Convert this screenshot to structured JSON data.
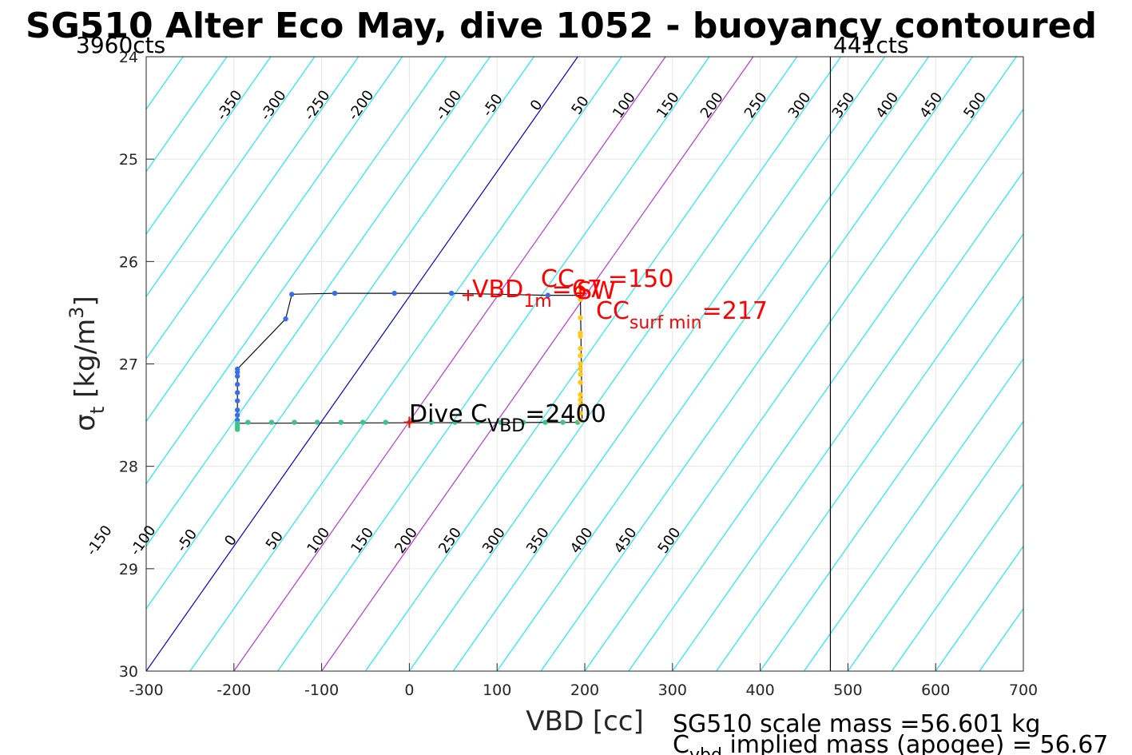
{
  "chart_data": {
    "type": "scatter",
    "title": "SG510 Alter Eco May, dive 1052 - buoyancy contoured",
    "xlabel": "VBD [cc]",
    "ylabel": {
      "main": "σ",
      "sub": "t",
      "unit_pre": " [kg/m",
      "unit_sup": "3",
      "unit_post": "]"
    },
    "xlim": [
      -300,
      700
    ],
    "ylim": [
      24,
      30
    ],
    "y_reversed": true,
    "grid": true,
    "xticks": [
      -300,
      -200,
      -100,
      0,
      100,
      200,
      300,
      400,
      500,
      600,
      700
    ],
    "yticks": [
      24,
      25,
      26,
      27,
      28,
      29,
      30
    ],
    "xtick_labels": [
      "-300",
      "-200",
      "-100",
      "0",
      "100",
      "200",
      "300",
      "400",
      "500",
      "600",
      "700"
    ],
    "ytick_labels": [
      "24",
      "25",
      "26",
      "27",
      "28",
      "29",
      "30"
    ],
    "contours": {
      "values": [
        -350,
        -300,
        -250,
        -200,
        -150,
        -100,
        -50,
        0,
        50,
        100,
        150,
        200,
        250,
        300,
        350,
        400,
        450,
        500
      ],
      "reference_vbd_at_bottom": -300,
      "vbd_per_sigma": -82,
      "spacing_cc": 50,
      "special": {
        "0": "#0000cd",
        "100": "#bb33dd",
        "200": "#bb33dd"
      },
      "default_color": "#1fe8f0",
      "top_labels": [
        "-350",
        "-300",
        "-250",
        "-200",
        "-100",
        "-50",
        "0",
        "50",
        "100",
        "150",
        "200",
        "250",
        "300",
        "350",
        "400",
        "450",
        "500"
      ],
      "bottom_labels": [
        "-150",
        "-100",
        "-50",
        "0",
        "50",
        "100",
        "150",
        "200",
        "250",
        "300",
        "350",
        "400",
        "450",
        "500"
      ]
    },
    "vertical_line_x": 480,
    "count_labels": {
      "left": "3960cts",
      "right": "441cts"
    },
    "series": [
      {
        "color": "#3a6ee8",
        "points": [
          [
            -196,
            27.05
          ],
          [
            -196,
            27.08
          ],
          [
            -196,
            27.12
          ],
          [
            -196,
            27.2
          ],
          [
            -196,
            27.28
          ],
          [
            -196,
            27.36
          ],
          [
            -196,
            27.45
          ],
          [
            -196,
            27.5
          ],
          [
            -196,
            27.55
          ],
          [
            -141,
            26.56
          ],
          [
            -134,
            26.32
          ],
          [
            -85,
            26.31
          ],
          [
            -17,
            26.31
          ],
          [
            48,
            26.31
          ],
          [
            158,
            26.33
          ]
        ],
        "path": [
          [
            -196,
            27.05
          ],
          [
            -141,
            26.56
          ],
          [
            -134,
            26.32
          ],
          [
            -85,
            26.31
          ],
          [
            -17,
            26.31
          ],
          [
            48,
            26.31
          ],
          [
            158,
            26.33
          ],
          [
            195,
            26.33
          ]
        ]
      },
      {
        "color": "#3dc48a",
        "points": [
          [
            -196,
            27.58
          ],
          [
            -196,
            27.6
          ],
          [
            -196,
            27.62
          ],
          [
            -196,
            27.64
          ],
          [
            -184,
            27.57
          ],
          [
            -157,
            27.57
          ],
          [
            -131,
            27.57
          ],
          [
            -105,
            27.57
          ],
          [
            -78,
            27.57
          ],
          [
            -53,
            27.57
          ],
          [
            -27,
            27.57
          ],
          [
            0,
            27.57
          ],
          [
            25,
            27.57
          ],
          [
            52,
            27.57
          ],
          [
            78,
            27.57
          ],
          [
            104,
            27.57
          ],
          [
            130,
            27.57
          ],
          [
            155,
            27.57
          ],
          [
            175,
            27.57
          ],
          [
            192,
            27.57
          ]
        ],
        "path": [
          [
            -196,
            27.05
          ],
          [
            -196,
            27.58
          ],
          [
            192,
            27.57
          ],
          [
            195,
            27.56
          ]
        ]
      },
      {
        "color": "#ffc81a",
        "points": [
          [
            195,
            26.25
          ],
          [
            195,
            26.3
          ],
          [
            195,
            26.37
          ],
          [
            195,
            26.55
          ],
          [
            195,
            26.7
          ],
          [
            195,
            26.73
          ],
          [
            195,
            26.85
          ],
          [
            195,
            26.92
          ],
          [
            195,
            27.0
          ],
          [
            195,
            27.05
          ],
          [
            195,
            27.1
          ],
          [
            195,
            27.18
          ],
          [
            195,
            27.3
          ],
          [
            195,
            27.35
          ],
          [
            195,
            27.4
          ],
          [
            195,
            27.48
          ],
          [
            195,
            27.55
          ]
        ],
        "path": [
          [
            195,
            26.33
          ],
          [
            197,
            27.57
          ]
        ]
      }
    ],
    "markers": [
      {
        "label": "VBD_1m_cross",
        "x": 67,
        "y": 26.33,
        "color": "#ff0000"
      },
      {
        "label": "dive_cross",
        "x": 0,
        "y": 27.57,
        "color": "#ff0000"
      },
      {
        "label": "cc_cross",
        "x": 195,
        "y": 26.31,
        "color": "#ff0000"
      }
    ],
    "annotations": {
      "vbd_1m": {
        "main": "VBD",
        "sub": "1m",
        "rest": "=67"
      },
      "sw": "SW",
      "cc": {
        "main": "CC",
        "rest": "=150"
      },
      "cc_surf": {
        "main": "CC",
        "sub": "surf min",
        "rest": "=217"
      },
      "dive_cvbd": {
        "main": "Dive C",
        "sub": "VBD",
        "rest": "=2400"
      }
    },
    "footer": {
      "line1": "SG510 scale mass =56.601 kg",
      "line2_main": "C",
      "line2_sub": "vbd",
      "line2_rest": " implied mass (apogee) = 56.67"
    }
  }
}
